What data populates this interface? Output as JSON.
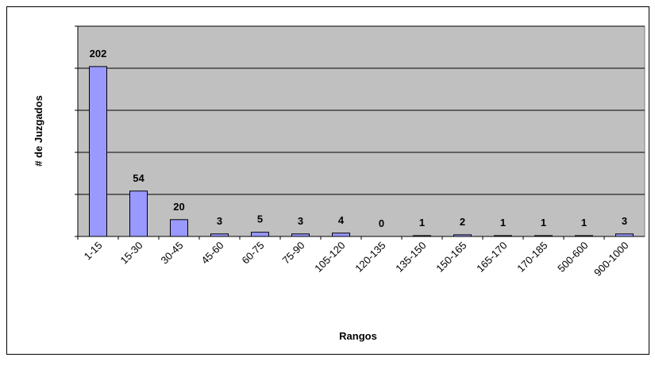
{
  "chart_data": {
    "type": "bar",
    "categories": [
      "1-15",
      "15-30",
      "30-45",
      "45-60",
      "60-75",
      "75-90",
      "105-120",
      "120-135",
      "135-150",
      "150-165",
      "165-170",
      "170-185",
      "500-600",
      "900-1000"
    ],
    "values": [
      202,
      54,
      20,
      3,
      5,
      3,
      4,
      0,
      1,
      2,
      1,
      1,
      1,
      3
    ],
    "color": "#9999ff",
    "x_label": "Rangos",
    "y_label": "# de Juzgados",
    "ylim": [
      0,
      250
    ],
    "yticks": [
      0,
      50,
      100,
      150,
      200,
      250
    ],
    "grid": true
  }
}
